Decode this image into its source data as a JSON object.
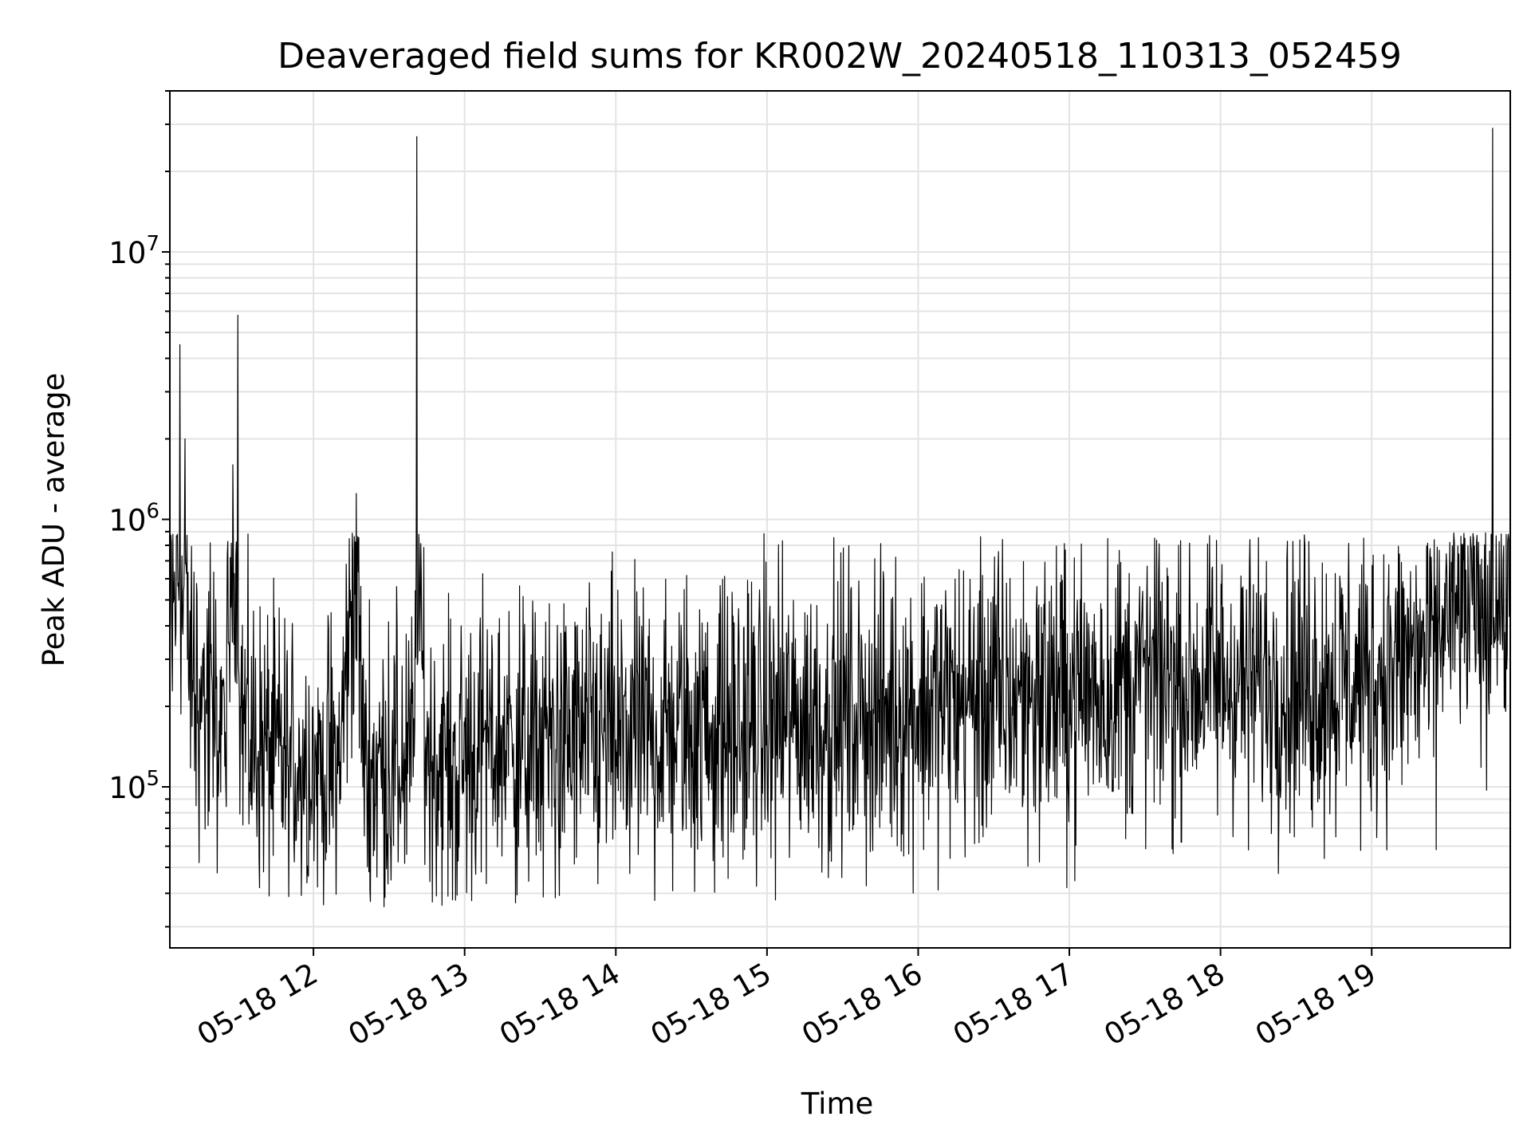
{
  "chart_data": {
    "type": "line",
    "title": "Deaveraged field sums for KR002W_20240518_110313_052459",
    "xlabel": "Time",
    "ylabel": "Peak ADU - average",
    "x_axis_kind": "datetime",
    "x_range": [
      "2024-05-18 11:03",
      "2024-05-18 19:55"
    ],
    "x_ticks": [
      "05-18 12",
      "05-18 13",
      "05-18 14",
      "05-18 15",
      "05-18 16",
      "05-18 17",
      "05-18 18",
      "05-18 19"
    ],
    "y_scale": "log",
    "ylim": [
      25000,
      40000000
    ],
    "y_major_ticks": [
      {
        "value": 100000,
        "base": "10",
        "exp": "5"
      },
      {
        "value": 1000000,
        "base": "10",
        "exp": "6"
      },
      {
        "value": 10000000,
        "base": "10",
        "exp": "7"
      }
    ],
    "grid": true,
    "legend": "none",
    "series": [
      {
        "color": "#000000",
        "x": [
          "2024-05-18 11:03",
          "2024-05-18 11:05",
          "2024-05-18 11:07",
          "2024-05-18 11:08",
          "2024-05-18 11:09",
          "2024-05-18 11:10",
          "2024-05-18 11:12",
          "2024-05-18 11:15",
          "2024-05-18 11:20",
          "2024-05-18 11:25",
          "2024-05-18 11:28",
          "2024-05-18 11:30",
          "2024-05-18 11:31",
          "2024-05-18 11:35",
          "2024-05-18 11:40",
          "2024-05-18 11:45",
          "2024-05-18 11:50",
          "2024-05-18 11:55",
          "2024-05-18 12:00",
          "2024-05-18 12:10",
          "2024-05-18 12:17",
          "2024-05-18 12:20",
          "2024-05-18 12:30",
          "2024-05-18 12:40",
          "2024-05-18 12:41",
          "2024-05-18 12:45",
          "2024-05-18 12:55",
          "2024-05-18 13:05",
          "2024-05-18 13:15",
          "2024-05-18 13:25",
          "2024-05-18 13:40",
          "2024-05-18 14:00",
          "2024-05-18 14:20",
          "2024-05-18 14:40",
          "2024-05-18 15:00",
          "2024-05-18 15:20",
          "2024-05-18 15:40",
          "2024-05-18 16:00",
          "2024-05-18 16:20",
          "2024-05-18 16:40",
          "2024-05-18 17:00",
          "2024-05-18 17:20",
          "2024-05-18 17:40",
          "2024-05-18 18:00",
          "2024-05-18 18:20",
          "2024-05-18 18:40",
          "2024-05-18 19:00",
          "2024-05-18 19:15",
          "2024-05-18 19:25",
          "2024-05-18 19:30",
          "2024-05-18 19:40",
          "2024-05-18 19:47",
          "2024-05-18 19:48",
          "2024-05-18 19:50",
          "2024-05-18 19:55"
        ],
        "y": [
          350000,
          500000,
          4500000,
          400000,
          2000000,
          300000,
          250000,
          220000,
          180000,
          160000,
          1600000,
          5800000,
          200000,
          150000,
          140000,
          130000,
          120000,
          130000,
          120000,
          120000,
          1250000,
          115000,
          120000,
          130000,
          27000000,
          130000,
          120000,
          140000,
          150000,
          140000,
          145000,
          150000,
          160000,
          165000,
          170000,
          180000,
          190000,
          200000,
          210000,
          220000,
          230000,
          240000,
          250000,
          255000,
          250000,
          245000,
          260000,
          300000,
          320000,
          450000,
          480000,
          420000,
          29000000,
          500000,
          450000
        ]
      }
    ]
  }
}
